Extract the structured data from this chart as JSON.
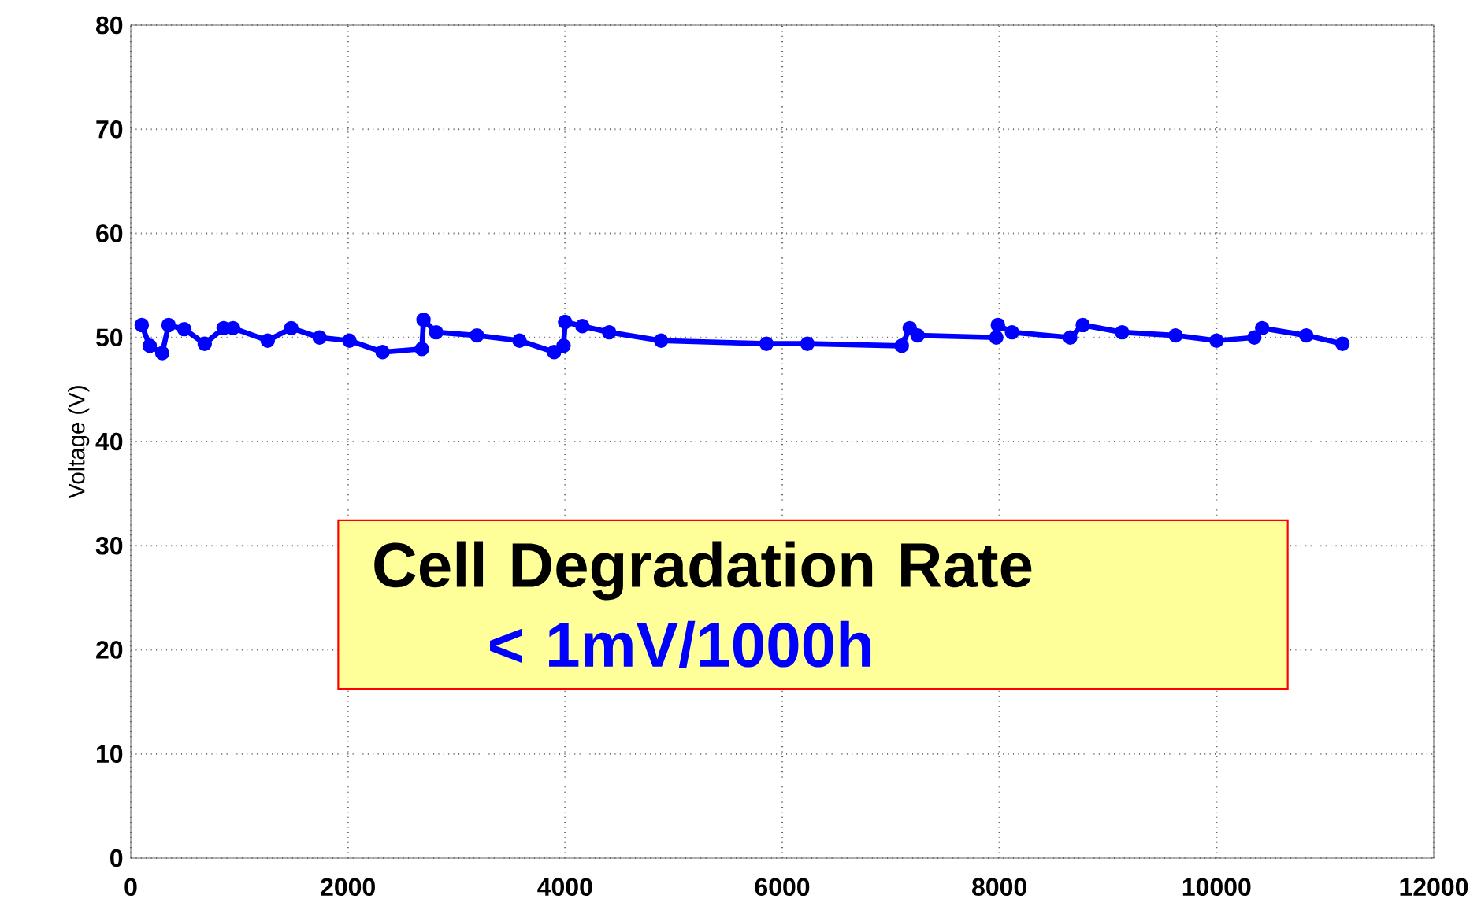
{
  "chart_data": {
    "type": "line",
    "ylabel": "Voltage (V)",
    "x": [
      101,
      174,
      290,
      348,
      493,
      681,
      855,
      942,
      1261,
      1478,
      1739,
      2014,
      2319,
      2681,
      2696,
      2812,
      3188,
      3580,
      3899,
      3986,
      4000,
      4159,
      4406,
      4884,
      5855,
      6232,
      7101,
      7174,
      7246,
      7971,
      7986,
      8116,
      8652,
      8768,
      9130,
      9623,
      10000,
      10348,
      10420,
      10826,
      11159
    ],
    "series": [
      {
        "color": "#0000ff",
        "values": [
          51.2,
          49.2,
          48.5,
          51.2,
          50.8,
          49.4,
          50.9,
          50.9,
          49.7,
          50.9,
          50.0,
          49.7,
          48.6,
          48.9,
          51.7,
          50.5,
          50.2,
          49.7,
          48.6,
          49.2,
          51.5,
          51.1,
          50.5,
          49.7,
          49.4,
          49.4,
          49.2,
          50.9,
          50.2,
          50.0,
          51.2,
          50.5,
          50.0,
          51.2,
          50.5,
          50.2,
          49.7,
          50.0,
          50.9,
          50.2,
          49.4
        ]
      }
    ],
    "xlim": [
      0,
      12000
    ],
    "xticks": [
      0,
      2000,
      4000,
      6000,
      8000,
      10000,
      12000
    ],
    "ylim": [
      0,
      80
    ],
    "yticks": [
      0,
      10,
      20,
      30,
      40,
      50,
      60,
      70,
      80
    ],
    "grid": true,
    "marker": "circle",
    "line_style": "solid",
    "annotations": [
      "Cell Degradation Rate",
      "< 1mV/1000h"
    ]
  }
}
